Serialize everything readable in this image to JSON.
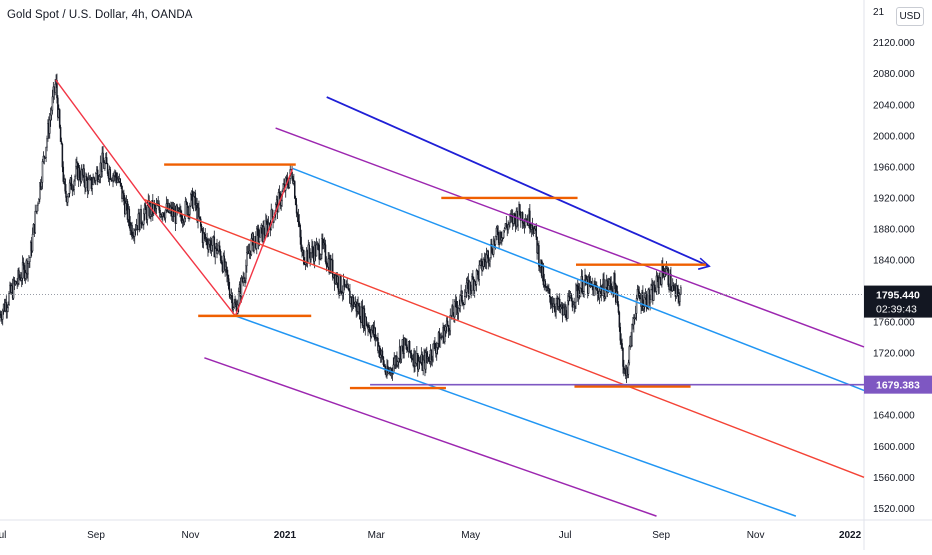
{
  "header": {
    "symbol_title": "Gold Spot / U.S. Dollar, 4h, OANDA",
    "currency_button": "USD"
  },
  "chart_data": {
    "type": "line",
    "title": "Gold Spot / U.S. Dollar, 4h, OANDA",
    "xlabel": "",
    "ylabel": "",
    "x_ticks": [
      "Jul",
      "Sep",
      "Nov",
      "2021",
      "Mar",
      "May",
      "Jul",
      "Sep",
      "Nov",
      "2022"
    ],
    "y_ticks": [
      "1520.000",
      "1560.000",
      "1600.000",
      "1640.000",
      "1680.000",
      "1720.000",
      "1760.000",
      "1800.000",
      "1840.000",
      "1880.000",
      "1920.000",
      "1960.000",
      "2000.000",
      "2040.000",
      "2080.000",
      "2120.000",
      "21"
    ],
    "ylim": [
      1505,
      2175
    ],
    "xlim": [
      "2020-07-01",
      "2022-01-10"
    ],
    "grid": false,
    "series": [
      {
        "values_date": [
          "2020-07-01",
          "2020-07-10",
          "2020-07-20",
          "2020-07-28",
          "2020-08-06",
          "2020-08-12",
          "2020-08-20",
          "2020-08-28",
          "2020-09-05",
          "2020-09-15",
          "2020-09-24",
          "2020-10-05",
          "2020-10-15",
          "2020-10-25",
          "2020-11-03",
          "2020-11-09",
          "2020-11-20",
          "2020-11-30",
          "2020-12-10",
          "2020-12-20",
          "2021-01-06",
          "2021-01-12",
          "2021-01-25",
          "2021-02-05",
          "2021-02-18",
          "2021-03-01",
          "2021-03-08",
          "2021-03-18",
          "2021-03-31",
          "2021-04-12",
          "2021-04-22",
          "2021-05-05",
          "2021-05-18",
          "2021-06-01",
          "2021-06-10",
          "2021-06-18",
          "2021-06-30",
          "2021-07-12",
          "2021-07-22",
          "2021-08-02",
          "2021-08-09",
          "2021-08-16",
          "2021-08-25",
          "2021-09-03",
          "2021-09-10",
          "2021-09-14"
        ],
        "values": [
          1770,
          1805,
          1840,
          1955,
          2070,
          1920,
          1955,
          1935,
          1965,
          1945,
          1880,
          1905,
          1905,
          1895,
          1920,
          1870,
          1850,
          1775,
          1860,
          1880,
          1955,
          1845,
          1855,
          1810,
          1775,
          1740,
          1690,
          1730,
          1705,
          1740,
          1780,
          1820,
          1870,
          1900,
          1890,
          1800,
          1770,
          1810,
          1800,
          1810,
          1685,
          1790,
          1790,
          1830,
          1795,
          1795
        ]
      }
    ],
    "annotations": {
      "last_price": "1795.440",
      "countdown": "02:39:43",
      "level_label": "1679.383"
    },
    "colors": {
      "candle": "#131722",
      "red": "#f23645",
      "red_line": "#f44336",
      "blue": "#1f1fd6",
      "light_blue": "#2196f3",
      "purple": "#9c27b0",
      "orange": "#ef5f00",
      "violet_line": "#7e57c2",
      "tag_dark": "#131722",
      "tag_violet": "#7e57c2"
    }
  }
}
